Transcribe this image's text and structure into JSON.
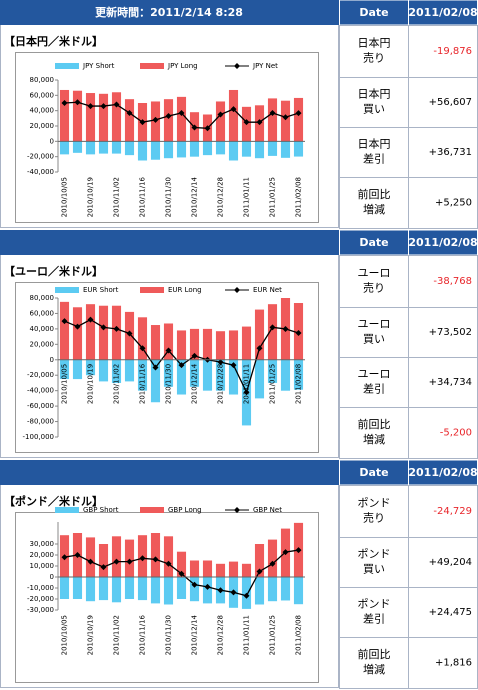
{
  "header": {
    "update_time": "更新時間：2011/2/14 8:28"
  },
  "sections": [
    {
      "date_header": "Date",
      "date": "2011/02/08",
      "rows": [
        {
          "label": [
            "日本円",
            "売り"
          ],
          "value": "-19,876",
          "color": "#e8262b"
        },
        {
          "label": [
            "日本円",
            "買い"
          ],
          "value": "+56,607",
          "color": "#000000"
        },
        {
          "label": [
            "日本円",
            "差引"
          ],
          "value": "+36,731",
          "color": "#000000"
        },
        {
          "label": [
            "前回比",
            "増減"
          ],
          "value": "+5,250",
          "color": "#000000"
        }
      ]
    },
    {
      "date_header": "Date",
      "date": "2011/02/08",
      "rows": [
        {
          "label": [
            "ユーロ",
            "売り"
          ],
          "value": "-38,768",
          "color": "#e8262b"
        },
        {
          "label": [
            "ユーロ",
            "買い"
          ],
          "value": "+73,502",
          "color": "#000000"
        },
        {
          "label": [
            "ユーロ",
            "差引"
          ],
          "value": "+34,734",
          "color": "#000000"
        },
        {
          "label": [
            "前回比",
            "増減"
          ],
          "value": "-5,200",
          "color": "#e8262b"
        }
      ]
    },
    {
      "date_header": "Date",
      "date": "2011/02/08",
      "rows": [
        {
          "label": [
            "ポンド",
            "売り"
          ],
          "value": "-24,729",
          "color": "#e8262b"
        },
        {
          "label": [
            "ポンド",
            "買い"
          ],
          "value": "+49,204",
          "color": "#000000"
        },
        {
          "label": [
            "ポンド",
            "差引"
          ],
          "value": "+24,475",
          "color": "#000000"
        },
        {
          "label": [
            "前回比",
            "増減"
          ],
          "value": "+1,816",
          "color": "#000000"
        }
      ]
    }
  ],
  "chart_data": [
    {
      "type": "bar",
      "title": "【日本円／米ドル】",
      "categories": [
        "2010/10/05",
        null,
        "2010/10/19",
        null,
        "2010/11/02",
        null,
        "2010/11/16",
        null,
        "2010/11/30",
        null,
        "2010/12/14",
        null,
        "2010/12/28",
        null,
        "2011/01/11",
        null,
        "2011/01/25",
        null,
        "2011/02/08"
      ],
      "series": [
        {
          "name": "JPY Short",
          "color": "#5ccbf2",
          "values": [
            -17000,
            -15000,
            -17000,
            -16000,
            -16000,
            -18000,
            -25000,
            -24000,
            -22000,
            -21000,
            -20000,
            -18000,
            -17000,
            -25000,
            -20000,
            -22000,
            -19000,
            -21519,
            -19876
          ]
        },
        {
          "name": "JPY Long",
          "color": "#ef5a5a",
          "values": [
            67000,
            66000,
            63000,
            62000,
            64000,
            55000,
            50000,
            52000,
            55000,
            58000,
            38000,
            35000,
            52000,
            67000,
            45000,
            47000,
            56000,
            53000,
            56607
          ]
        },
        {
          "name": "JPY Net",
          "type": "line",
          "color": "#000000",
          "values": [
            50000,
            51000,
            46000,
            46000,
            48000,
            37000,
            25000,
            28000,
            33000,
            37000,
            18000,
            17000,
            35000,
            42000,
            25000,
            25000,
            37000,
            31481,
            36731
          ]
        }
      ],
      "ylim": [
        -40000,
        80000
      ],
      "yticks": [
        {
          "value": 80000,
          "label": "80,000"
        },
        {
          "value": 60000,
          "label": "60,000"
        },
        {
          "value": 40000,
          "label": "40,000"
        },
        {
          "value": 20000,
          "label": "20,000"
        },
        0,
        {
          "value": -20000,
          "label": "-20,000"
        },
        {
          "value": -40000,
          "label": "-40,000"
        }
      ],
      "legend": "top",
      "grid": false
    },
    {
      "type": "bar",
      "title": "【ユーロ／米ドル】",
      "categories": [
        "2010/10/05",
        null,
        "2010/10/19",
        null,
        "2010/11/02",
        null,
        "2010/11/16",
        null,
        "2010/11/30",
        null,
        "2010/12/14",
        null,
        "2010/12/28",
        null,
        "2011/01/11",
        null,
        "2011/01/25",
        null,
        "2011/02/08"
      ],
      "series": [
        {
          "name": "EUR Short",
          "color": "#5ccbf2",
          "values": [
            -25000,
            -25000,
            -20000,
            -28000,
            -30000,
            -28000,
            -40000,
            -55000,
            -35000,
            -45000,
            -35000,
            -40000,
            -40000,
            -45000,
            -85000,
            -50000,
            -30000,
            -40066,
            -38768
          ]
        },
        {
          "name": "EUR Long",
          "color": "#ef5a5a",
          "values": [
            75000,
            68000,
            72000,
            70000,
            70000,
            62000,
            55000,
            45000,
            47000,
            38000,
            40000,
            40000,
            37000,
            38000,
            43000,
            65000,
            72000,
            80000,
            73502
          ]
        },
        {
          "name": "EUR Net",
          "type": "line",
          "color": "#000000",
          "values": [
            50000,
            43000,
            52000,
            42000,
            40000,
            34000,
            15000,
            -10000,
            12000,
            -7000,
            5000,
            0,
            -3000,
            -7000,
            -42000,
            15000,
            42000,
            39934,
            34734
          ]
        }
      ],
      "ylim": [
        -100000,
        80000
      ],
      "yticks": [
        {
          "value": 80000,
          "label": "80,000"
        },
        {
          "value": 60000,
          "label": "60,000"
        },
        {
          "value": 40000,
          "label": "40,000"
        },
        {
          "value": 20000,
          "label": "20,000"
        },
        0,
        {
          "value": -20000,
          "label": "-20,000"
        },
        {
          "value": -40000,
          "label": "-40,000"
        },
        {
          "value": -60000,
          "label": "-60,000"
        },
        {
          "value": -80000,
          "label": "-80,000"
        },
        {
          "value": -100000,
          "label": "-100,000"
        }
      ],
      "legend": "top",
      "grid": false
    },
    {
      "type": "bar",
      "title": "【ポンド／米ドル】",
      "categories": [
        "2010/10/05",
        null,
        "2010/10/19",
        null,
        "2010/11/02",
        null,
        "2010/11/16",
        null,
        "2010/11/30",
        null,
        "2010/12/14",
        null,
        "2010/12/28",
        null,
        "2011/01/11",
        null,
        "2011/01/25",
        null,
        "2011/02/08"
      ],
      "series": [
        {
          "name": "GBP Short",
          "color": "#5ccbf2",
          "values": [
            -20000,
            -20000,
            -22000,
            -21000,
            -23000,
            -20000,
            -21000,
            -24000,
            -25000,
            -20000,
            -22000,
            -24000,
            -24000,
            -28000,
            -29000,
            -25000,
            -22000,
            -21341,
            -24729
          ]
        },
        {
          "name": "GBP Long",
          "color": "#ef5a5a",
          "values": [
            38000,
            40000,
            36000,
            30000,
            37000,
            34000,
            38000,
            40000,
            37000,
            23000,
            15000,
            15000,
            12000,
            14000,
            12000,
            30000,
            34000,
            44000,
            49204
          ]
        },
        {
          "name": "GBP Net",
          "type": "line",
          "color": "#000000",
          "values": [
            18000,
            20000,
            14000,
            9000,
            14000,
            14000,
            17000,
            16000,
            12000,
            3000,
            -7000,
            -9000,
            -12000,
            -14000,
            -17000,
            5000,
            12000,
            22659,
            24475
          ]
        }
      ],
      "ylim": [
        -30000,
        50000
      ],
      "yticks": [
        {
          "value": 30000,
          "label": "30,000"
        },
        {
          "value": 20000,
          "label": "20,000"
        },
        {
          "value": 10000,
          "label": "10,000"
        },
        0,
        {
          "value": -10000,
          "label": "-10,000"
        },
        {
          "value": -20000,
          "label": "-20,000"
        },
        {
          "value": -30000,
          "label": "-30,000"
        }
      ],
      "legend": "top",
      "grid": false
    }
  ]
}
